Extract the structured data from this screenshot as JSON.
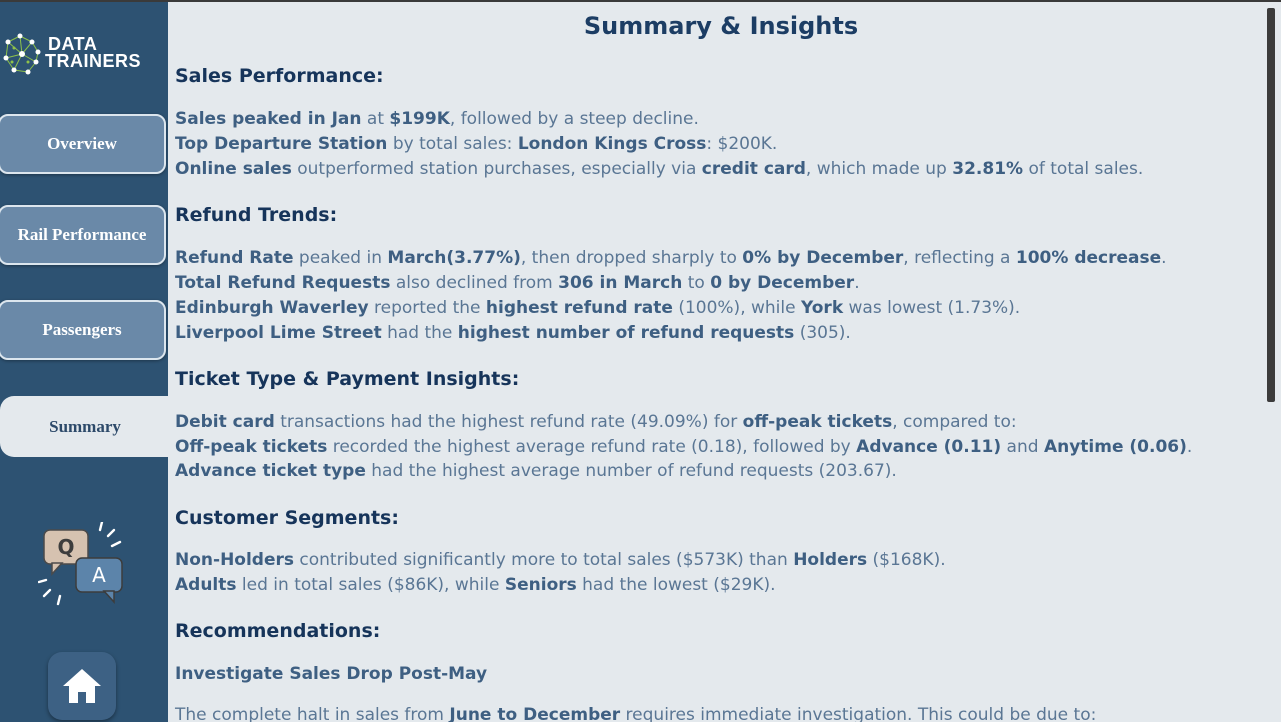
{
  "logo": {
    "line1": "DATA",
    "line2": "TRAINERS"
  },
  "nav": {
    "overview": "Overview",
    "rail_performance": "Rail Performance",
    "passengers": "Passengers",
    "summary": "Summary"
  },
  "qa_icon": {
    "q": "Q",
    "a": "A"
  },
  "page": {
    "title": "Summary & Insights"
  },
  "sections": {
    "sales": {
      "heading": "Sales Performance:",
      "line1": {
        "b1": "Sales peaked in Jan",
        "t1": " at ",
        "b2": "$199K",
        "t2": ", followed by a steep decline."
      },
      "line2": {
        "b1": "Top Departure Station",
        "t1": " by total sales:  ",
        "b2": "London Kings Cross",
        "t2": ": $200K."
      },
      "line3": {
        "b1": "Online sales",
        "t1": " outperformed station purchases, especially via ",
        "b2": "credit card",
        "t2": ", which made up ",
        "b3": "32.81%",
        "t3": " of total sales."
      }
    },
    "refund": {
      "heading": "Refund Trends:",
      "line1": {
        "b1": "Refund Rate",
        "t1": " peaked in  ",
        "b2": "March(3.77%)",
        "t2": ", then dropped sharply to ",
        "b3": "0% by December",
        "t3": ", reflecting a ",
        "b4": "100% decrease",
        "t4": "."
      },
      "line2": {
        "b1": "Total Refund Requests",
        "t1": " also declined from ",
        "b2": "306 in March",
        "t2": " to ",
        "b3": "0 by December",
        "t3": "."
      },
      "line3": {
        "b1": "Edinburgh Waverley",
        "t1": " reported the ",
        "b2": "highest refund rate",
        "t2": " (100%), while ",
        "b3": "York",
        "t3": " was lowest (1.73%)."
      },
      "line4": {
        "b1": "Liverpool Lime Street",
        "t1": " had the ",
        "b2": "highest number of refund requests",
        "t2": " (305)."
      }
    },
    "ticket": {
      "heading": "Ticket Type & Payment Insights:",
      "line1": {
        "b1": "Debit card",
        "t1": " transactions had the highest refund rate (49.09%) for ",
        "b2": "off-peak tickets",
        "t2": ", compared to:"
      },
      "line2": {
        "b1": "Off-peak tickets",
        "t1": " recorded the highest average refund rate (0.18), followed by ",
        "b2": "Advance (0.11)",
        "t2": " and ",
        "b3": "Anytime (0.06)",
        "t3": "."
      },
      "line3": {
        "b1": "Advance ticket type",
        "t1": " had the highest average number of refund requests (203.67)."
      }
    },
    "customer": {
      "heading": "Customer Segments:",
      "line1": {
        "b1": "Non-Holders",
        "t1": " contributed significantly more to total sales ($573K) than ",
        "b2": "Holders",
        "t2": " ($168K)."
      },
      "line2": {
        "b1": "Adults",
        "t1": " led in total sales ($86K), while ",
        "b2": "Seniors",
        "t2": " had the lowest ($29K)."
      }
    },
    "recommendations": {
      "heading": "Recommendations:",
      "sub": "Investigate Sales Drop Post-May",
      "line1": {
        "t1": "The complete halt in sales from ",
        "b1": "June to December",
        "t2": " requires immediate investigation. This could be due to:"
      }
    }
  },
  "colors": {
    "sidebar": "#2d5272",
    "page_bg": "#e4e9ed",
    "heading": "#16345a",
    "body_text": "#5a7694",
    "emphasis": "#3e5f82",
    "nav_button": "#6a89a8"
  }
}
